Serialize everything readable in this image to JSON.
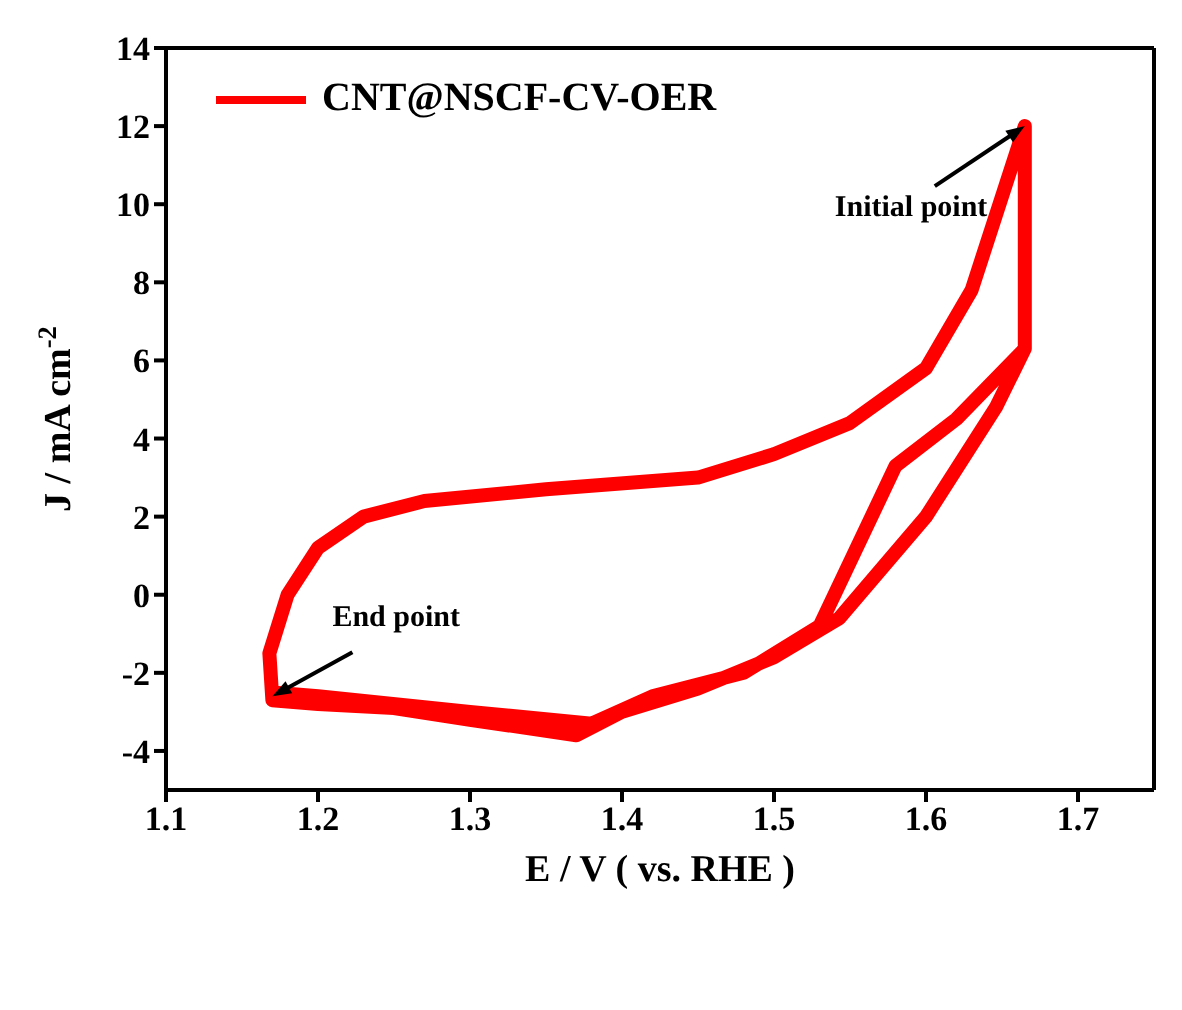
{
  "chart_data": {
    "type": "line",
    "xlabel": "E / V ( vs. RHE )",
    "ylabel": "J / mA cm$^{-2}$",
    "xlim": [
      1.1,
      1.75
    ],
    "xticks": [
      1.1,
      1.2,
      1.3,
      1.4,
      1.5,
      1.6,
      1.7
    ],
    "ylim": [
      -5,
      14
    ],
    "yticks": [
      -4,
      -2,
      0,
      2,
      4,
      6,
      8,
      10,
      12,
      14
    ],
    "grid": false,
    "legend": "top left",
    "marker": "none",
    "line_style": "solid",
    "series": [
      {
        "name": "CNT@NSCF-CV-OER",
        "color": "#ff0000",
        "x": [
          1.665,
          1.665,
          1.646,
          1.6,
          1.543,
          1.5,
          1.45,
          1.4,
          1.37,
          1.3,
          1.25,
          1.2,
          1.17,
          1.168,
          1.18,
          1.2,
          1.23,
          1.27,
          1.35,
          1.45,
          1.5,
          1.55,
          1.6,
          1.63,
          1.665,
          1.665,
          1.62,
          1.58,
          1.53,
          1.48,
          1.42,
          1.38,
          1.3,
          1.2,
          1.17
        ],
        "values": [
          12,
          6.3,
          4.8,
          2.0,
          -0.6,
          -1.6,
          -2.4,
          -3.0,
          -3.6,
          -3.2,
          -2.9,
          -2.8,
          -2.7,
          -1.5,
          0,
          1.2,
          2.0,
          2.4,
          2.7,
          3.0,
          3.6,
          4.4,
          5.8,
          7.8,
          12,
          6.3,
          4.5,
          3.3,
          -0.8,
          -2.0,
          -2.6,
          -3.3,
          -3.0,
          -2.6,
          -2.5
        ]
      }
    ],
    "annotations": [
      {
        "text": "Initial point",
        "x": 1.665,
        "y": 12
      },
      {
        "text": "End point",
        "x": 1.17,
        "y": -2.6
      }
    ]
  }
}
